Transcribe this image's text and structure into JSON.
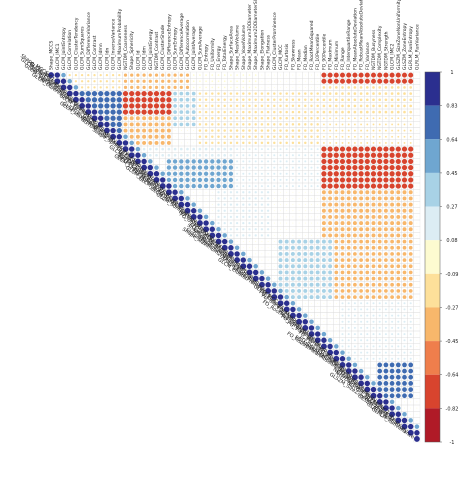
{
  "chart_data": {
    "type": "heatmap",
    "subtype": "upper-triangular correlation matrix (corrplot circles)",
    "n_variables": 60,
    "variables": [
      "Shape_MCCS",
      "GLCM_IMC1",
      "GLCM_JointEntropy",
      "GLCM_Correlation",
      "GLCM_ClusterTendency",
      "GLCM_SumSquares",
      "GLCM_DifferenceVariance",
      "GLCM_Contrast",
      "GLCM_Idmn",
      "GLCM_Idn",
      "GLCM_InverseVariance",
      "GLCM_MaximumProbability",
      "NGTDM_Coarseness",
      "Shape_Sphericity",
      "GLCM_Id",
      "GLCM_Idm",
      "GLCM_JointEnergy",
      "NGTDM_Contrast",
      "GLCM_ClusterShade",
      "GLCM_DifferenceEntropy",
      "GLCM_SumEntropy",
      "GLCM_DifferenceAverage",
      "GLCM_Autocorrelation",
      "GLCM_JointAverage",
      "GLCM_SumAverage",
      "FO_Entropy",
      "FO_Uniformity",
      "FO_Energy",
      "FO_TotalEnergy",
      "Shape_SurfaceArea",
      "Shape_MeshVolume",
      "Shape_VoxelVolume",
      "Shape_Maximum3DDiameter",
      "Shape_Maximum2DDiameterSlice",
      "Shape_Elongation",
      "Shape_Flatness",
      "GLCM_ClusterProminence",
      "GLCM_MCC",
      "FO_Kurtosis",
      "FO_Skewness",
      "FO_Mean",
      "FO_Median",
      "FO_RootMeanSquared",
      "FO_10Percentile",
      "FO_90Percentile",
      "FO_Maximum",
      "FO_Minimum",
      "FO_Range",
      "FO_InterquartileRange",
      "FO_MeanAbsoluteDeviation",
      "FO_RobustMeanAbsoluteDeviation",
      "FO_Variance",
      "NGTDM_Busyness",
      "NGTDM_Complexity",
      "NGTDM_Strength",
      "GLCM_IMC2",
      "GLSZM_SizeZoneNonUniformity",
      "GLSZM_ZoneEntropy",
      "GLRLM_RunEntropy",
      "GLRLM_RunVariance"
    ],
    "colorbar": {
      "tick_labels": [
        "1",
        "0.83",
        "0.64",
        "0.45",
        "0.27",
        "0.08",
        "-0.09",
        "-0.27",
        "-0.45",
        "-0.64",
        "-0.82",
        "-1"
      ],
      "colors": [
        "#2b2f8f",
        "#3f6bb1",
        "#6fa6d0",
        "#a8d2e6",
        "#dcedf4",
        "#fdfbd0",
        "#fde09a",
        "#f8b76b",
        "#ef7e4c",
        "#d8442e",
        "#b01a27"
      ]
    },
    "blocks": [
      {
        "rows": [
          0,
          2
        ],
        "cols": [
          3,
          11
        ],
        "r": -0.15
      },
      {
        "rows": [
          0,
          2
        ],
        "cols": [
          12,
          22
        ],
        "r": -0.3
      },
      {
        "rows": [
          0,
          2
        ],
        "cols": [
          23,
          33
        ],
        "r": -0.08
      },
      {
        "rows": [
          0,
          1
        ],
        "cols": [
          44,
          58
        ],
        "r": -0.72
      },
      {
        "rows": [
          2,
          6
        ],
        "cols": [
          44,
          58
        ],
        "r": -0.2
      },
      {
        "rows": [
          3,
          11
        ],
        "cols": [
          4,
          11
        ],
        "r": 0.8
      },
      {
        "rows": [
          3,
          6
        ],
        "cols": [
          12,
          19
        ],
        "r": -0.8
      },
      {
        "rows": [
          7,
          11
        ],
        "cols": [
          12,
          19
        ],
        "r": -0.45
      },
      {
        "rows": [
          3,
          8
        ],
        "cols": [
          20,
          23
        ],
        "r": 0.4
      },
      {
        "rows": [
          3,
          11
        ],
        "cols": [
          24,
          43
        ],
        "r": -0.18
      },
      {
        "rows": [
          7,
          11
        ],
        "cols": [
          44,
          58
        ],
        "r": -0.1
      },
      {
        "rows": [
          12,
          13
        ],
        "cols": [
          14,
          29
        ],
        "r": 0.2
      },
      {
        "rows": [
          14,
          18
        ],
        "cols": [
          19,
          29
        ],
        "r": 0.55
      },
      {
        "rows": [
          12,
          18
        ],
        "cols": [
          30,
          43
        ],
        "r": 0.12
      },
      {
        "rows": [
          12,
          18
        ],
        "cols": [
          44,
          58
        ],
        "r": -0.78
      },
      {
        "rows": [
          19,
          26
        ],
        "cols": [
          27,
          35
        ],
        "r": 0.15
      },
      {
        "rows": [
          19,
          26
        ],
        "cols": [
          44,
          58
        ],
        "r": -0.45
      },
      {
        "rows": [
          27,
          36
        ],
        "cols": [
          37,
          45
        ],
        "r": 0.45
      },
      {
        "rows": [
          27,
          36
        ],
        "cols": [
          46,
          58
        ],
        "r": -0.4
      },
      {
        "rows": [
          37,
          46
        ],
        "cols": [
          47,
          58
        ],
        "r": 0.12
      },
      {
        "rows": [
          47,
          52
        ],
        "cols": [
          53,
          58
        ],
        "r": 0.65
      }
    ],
    "diagonal_r": 1,
    "near_diagonal_r": 0.85
  }
}
